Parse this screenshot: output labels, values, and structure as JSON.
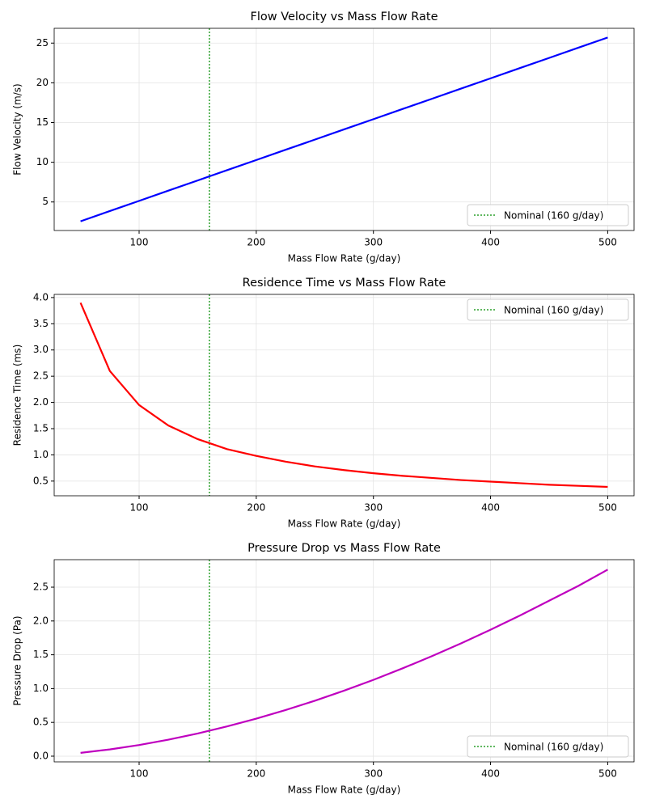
{
  "chart_data": [
    {
      "type": "line",
      "title": "Flow Velocity vs Mass Flow Rate",
      "xlabel": "Mass Flow Rate (g/day)",
      "ylabel": "Flow Velocity (m/s)",
      "x": [
        50,
        75,
        100,
        125,
        150,
        175,
        200,
        225,
        250,
        275,
        300,
        325,
        350,
        375,
        400,
        425,
        450,
        475,
        500
      ],
      "values": [
        2.57,
        3.86,
        5.14,
        6.43,
        7.71,
        9.0,
        10.28,
        11.57,
        12.85,
        14.14,
        15.42,
        16.71,
        17.99,
        19.28,
        20.56,
        21.85,
        23.13,
        24.42,
        25.7
      ],
      "color": "#0000ff",
      "xlim": [
        27.5,
        522.5
      ],
      "ylim": [
        1.41,
        26.86
      ],
      "xticks": [
        100,
        200,
        300,
        400,
        500
      ],
      "yticks": [
        5,
        10,
        15,
        20,
        25
      ],
      "grid": true,
      "vline": {
        "value": 160,
        "label": "Nominal (160 g/day)",
        "color": "#2ca02c"
      },
      "legend": "lower right"
    },
    {
      "type": "line",
      "title": "Residence Time vs Mass Flow Rate",
      "xlabel": "Mass Flow Rate (g/day)",
      "ylabel": "Residence Time (ms)",
      "x": [
        50,
        75,
        100,
        125,
        150,
        175,
        200,
        225,
        250,
        275,
        300,
        325,
        350,
        375,
        400,
        425,
        450,
        475,
        500
      ],
      "values": [
        3.9,
        2.6,
        1.95,
        1.56,
        1.3,
        1.11,
        0.98,
        0.87,
        0.78,
        0.71,
        0.65,
        0.6,
        0.56,
        0.52,
        0.49,
        0.46,
        0.43,
        0.41,
        0.39
      ],
      "color": "#ff0000",
      "xlim": [
        27.5,
        522.5
      ],
      "ylim": [
        0.22,
        4.06
      ],
      "xticks": [
        100,
        200,
        300,
        400,
        500
      ],
      "yticks": [
        0.5,
        {
          "value": 1,
          "label": "1.0"
        },
        1.5,
        {
          "value": 2,
          "label": "2.0"
        },
        2.5,
        {
          "value": 3,
          "label": "3.0"
        },
        3.5,
        {
          "value": 4,
          "label": "4.0"
        }
      ],
      "grid": true,
      "vline": {
        "value": 160,
        "label": "Nominal (160 g/day)",
        "color": "#2ca02c"
      },
      "legend": "upper right"
    },
    {
      "type": "line",
      "title": "Pressure Drop vs Mass Flow Rate",
      "xlabel": "Mass Flow Rate (g/day)",
      "ylabel": "Pressure Drop (Pa)",
      "x": [
        50,
        75,
        100,
        125,
        150,
        175,
        200,
        225,
        250,
        275,
        300,
        325,
        350,
        375,
        400,
        425,
        450,
        475,
        500
      ],
      "values": [
        0.049,
        0.1,
        0.165,
        0.244,
        0.336,
        0.44,
        0.555,
        0.683,
        0.82,
        0.97,
        1.129,
        1.3,
        1.48,
        1.67,
        1.87,
        2.08,
        2.3,
        2.52,
        2.76
      ],
      "color": "#bf00bf",
      "xlim": [
        27.5,
        522.5
      ],
      "ylim": [
        -0.084,
        2.907
      ],
      "xticks": [
        100,
        200,
        300,
        400,
        500
      ],
      "yticks": [
        {
          "value": 0,
          "label": "0.0"
        },
        0.5,
        {
          "value": 1,
          "label": "1.0"
        },
        1.5,
        {
          "value": 2,
          "label": "2.0"
        },
        2.5
      ],
      "grid": true,
      "vline": {
        "value": 160,
        "label": "Nominal (160 g/day)",
        "color": "#2ca02c"
      },
      "legend": "lower right"
    }
  ]
}
